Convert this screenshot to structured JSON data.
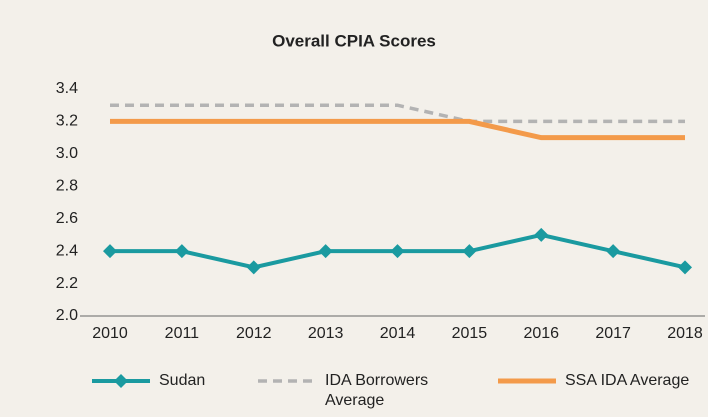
{
  "chart_data": {
    "type": "line",
    "title": "Overall CPIA Scores",
    "categories": [
      "2010",
      "2011",
      "2012",
      "2013",
      "2014",
      "2015",
      "2016",
      "2017",
      "2018"
    ],
    "series": [
      {
        "name": "Sudan",
        "color": "#1a9aa0",
        "values": [
          2.4,
          2.4,
          2.3,
          2.4,
          2.4,
          2.4,
          2.5,
          2.4,
          2.3
        ]
      },
      {
        "name": "IDA Borrowers Average",
        "color": "#b3b3b3",
        "values": [
          3.3,
          3.3,
          3.3,
          3.3,
          3.3,
          3.2,
          3.2,
          3.2,
          3.2
        ]
      },
      {
        "name": "SSA IDA Average",
        "color": "#f39a4a",
        "values": [
          3.2,
          3.2,
          3.2,
          3.2,
          3.2,
          3.2,
          3.1,
          3.1,
          3.1
        ]
      }
    ],
    "ylim": [
      2.0,
      3.4
    ],
    "yticks": [
      {
        "value": 2.0,
        "label": "2.0"
      },
      2.2,
      2.4,
      2.6,
      2.8,
      {
        "value": 3.0,
        "label": "3.0"
      },
      3.2,
      3.4
    ],
    "legend": "bottom"
  }
}
